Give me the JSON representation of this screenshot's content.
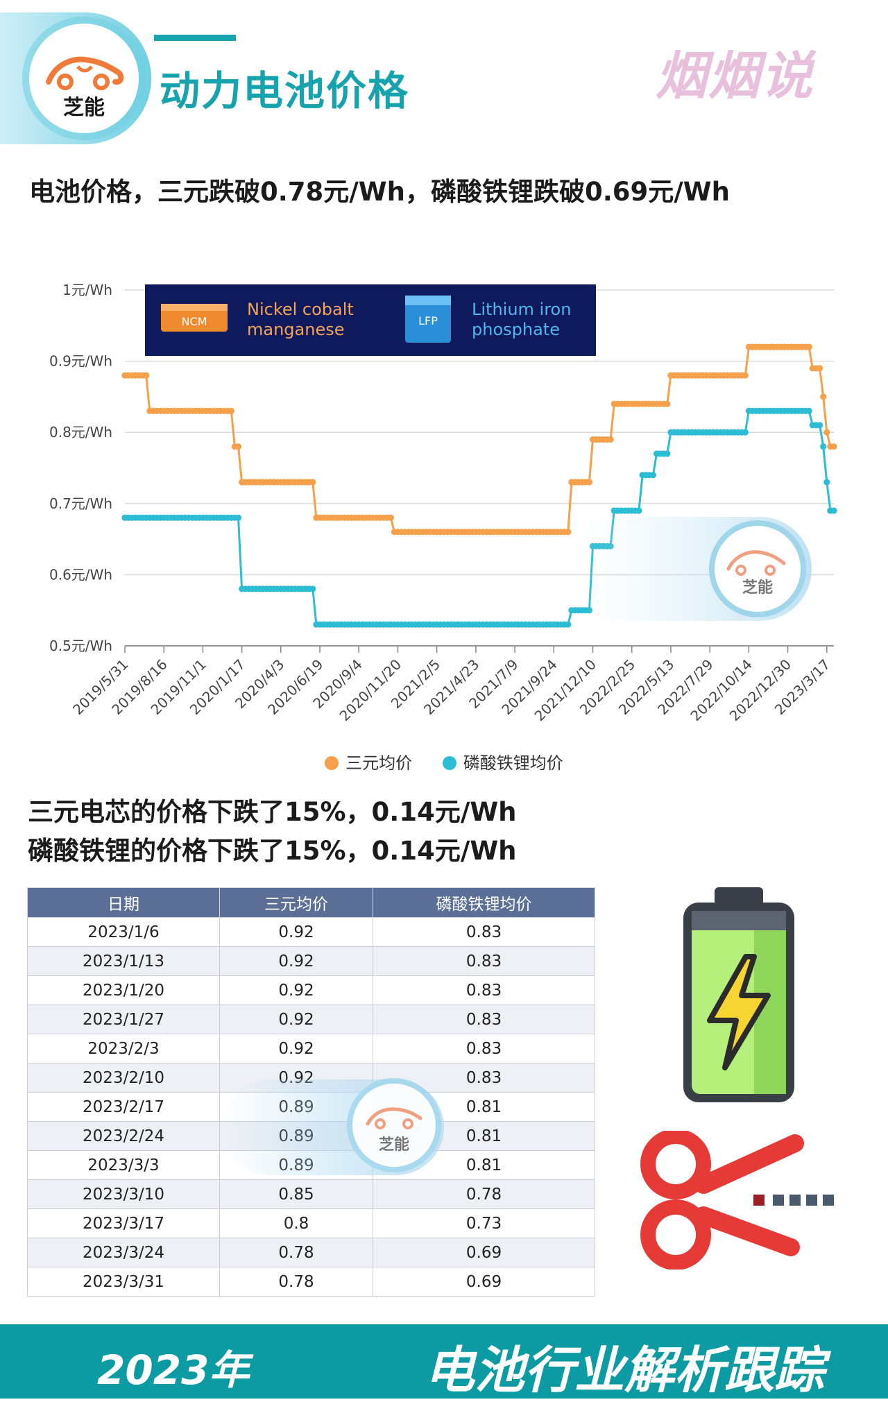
{
  "header": {
    "logo_text": "芝能",
    "title": "动力电池价格",
    "brand": "烟烟说"
  },
  "headline": "电池价格，三元跌破0.78元/Wh，磷酸铁锂跌破0.69元/Wh",
  "inset_banner": {
    "ncm_badge": "NCM",
    "ncm_label_line1": "Nickel cobalt",
    "ncm_label_line2": "manganese",
    "lfp_badge": "LFP",
    "lfp_label_line1": "Lithium iron",
    "lfp_label_line2": "phosphate"
  },
  "colors": {
    "ncm": "#f5a04a",
    "lfp": "#2cbcd3",
    "accent": "#17a3ad",
    "table_header": "#5b6f96"
  },
  "chart_data": {
    "type": "line",
    "ylim": [
      0.5,
      1.0
    ],
    "y_ticks": [
      "0.5元/Wh",
      "0.6元/Wh",
      "0.7元/Wh",
      "0.8元/Wh",
      "0.9元/Wh",
      "1元/Wh"
    ],
    "x_ticks": [
      "2019/5/31",
      "2019/8/16",
      "2019/11/1",
      "2020/1/17",
      "2020/4/3",
      "2020/6/19",
      "2020/9/4",
      "2020/11/20",
      "2021/2/5",
      "2021/4/23",
      "2021/7/9",
      "2021/9/24",
      "2021/12/10",
      "2022/2/25",
      "2022/5/13",
      "2022/7/29",
      "2022/10/14",
      "2022/12/30",
      "2023/3/17"
    ],
    "grid": true,
    "legend_position": "bottom",
    "series": [
      {
        "name": "三元均价",
        "color": "#f5a04a",
        "steps": [
          {
            "from": "2019/5/31",
            "value": 0.88
          },
          {
            "from": "2019/7/19",
            "value": 0.83
          },
          {
            "from": "2020/1/3",
            "value": 0.78
          },
          {
            "from": "2020/1/17",
            "value": 0.73
          },
          {
            "from": "2020/6/12",
            "value": 0.68
          },
          {
            "from": "2020/11/13",
            "value": 0.66
          },
          {
            "from": "2021/10/29",
            "value": 0.73
          },
          {
            "from": "2021/12/10",
            "value": 0.79
          },
          {
            "from": "2022/1/21",
            "value": 0.84
          },
          {
            "from": "2022/5/13",
            "value": 0.88
          },
          {
            "from": "2022/10/14",
            "value": 0.92
          },
          {
            "from": "2023/2/17",
            "value": 0.89
          },
          {
            "from": "2023/3/10",
            "value": 0.85
          },
          {
            "from": "2023/3/17",
            "value": 0.8
          },
          {
            "from": "2023/3/24",
            "value": 0.78
          }
        ]
      },
      {
        "name": "磷酸铁锂均价",
        "color": "#2cbcd3",
        "steps": [
          {
            "from": "2019/5/31",
            "value": 0.68
          },
          {
            "from": "2020/1/17",
            "value": 0.58
          },
          {
            "from": "2020/6/12",
            "value": 0.53
          },
          {
            "from": "2021/10/29",
            "value": 0.55
          },
          {
            "from": "2021/12/10",
            "value": 0.64
          },
          {
            "from": "2022/1/21",
            "value": 0.69
          },
          {
            "from": "2022/3/18",
            "value": 0.74
          },
          {
            "from": "2022/4/15",
            "value": 0.77
          },
          {
            "from": "2022/5/13",
            "value": 0.8
          },
          {
            "from": "2022/10/14",
            "value": 0.83
          },
          {
            "from": "2023/2/17",
            "value": 0.81
          },
          {
            "from": "2023/3/10",
            "value": 0.78
          },
          {
            "from": "2023/3/17",
            "value": 0.73
          },
          {
            "from": "2023/3/24",
            "value": 0.69
          }
        ],
        "end": "2023/3/31"
      }
    ]
  },
  "legend": {
    "ncm": "三元均价",
    "lfp": "磷酸铁锂均价"
  },
  "summary": {
    "line1": "三元电芯的价格下跌了15%，0.14元/Wh",
    "line2": "磷酸铁锂的价格下跌了15%，0.14元/Wh"
  },
  "table": {
    "headers": [
      "日期",
      "三元均价",
      "磷酸铁锂均价"
    ],
    "rows": [
      [
        "2023/1/6",
        "0.92",
        "0.83"
      ],
      [
        "2023/1/13",
        "0.92",
        "0.83"
      ],
      [
        "2023/1/20",
        "0.92",
        "0.83"
      ],
      [
        "2023/1/27",
        "0.92",
        "0.83"
      ],
      [
        "2023/2/3",
        "0.92",
        "0.83"
      ],
      [
        "2023/2/10",
        "0.92",
        "0.83"
      ],
      [
        "2023/2/17",
        "0.89",
        "0.81"
      ],
      [
        "2023/2/24",
        "0.89",
        "0.81"
      ],
      [
        "2023/3/3",
        "0.89",
        "0.81"
      ],
      [
        "2023/3/10",
        "0.85",
        "0.78"
      ],
      [
        "2023/3/17",
        "0.8",
        "0.73"
      ],
      [
        "2023/3/24",
        "0.78",
        "0.69"
      ],
      [
        "2023/3/31",
        "0.78",
        "0.69"
      ]
    ]
  },
  "icons": {
    "battery": "battery-charging-icon",
    "scissors": "scissors-icon"
  },
  "footer": {
    "year": "2023年",
    "tagline": "电池行业解析跟踪"
  }
}
